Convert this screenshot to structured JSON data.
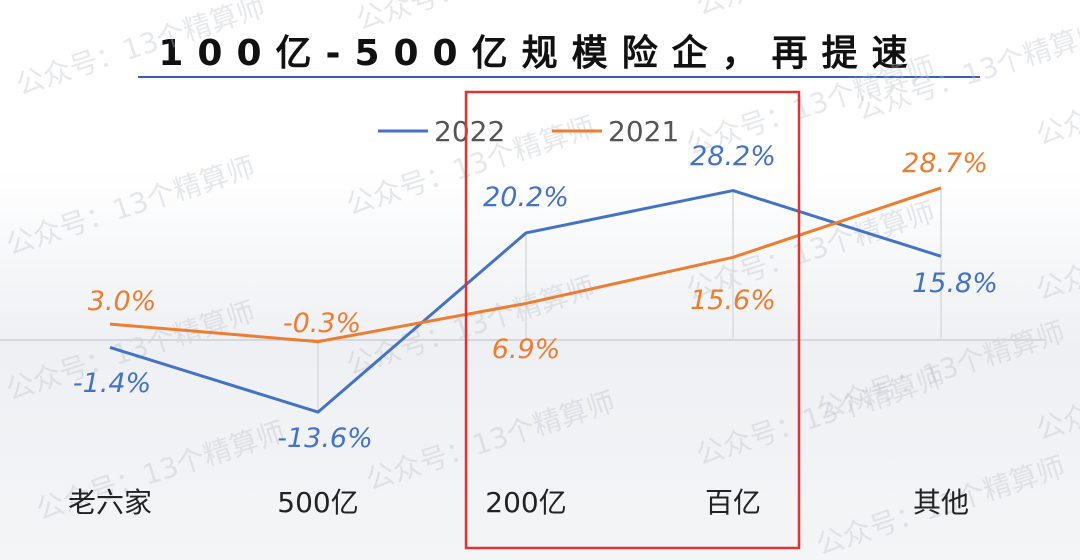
{
  "title": "100亿-500亿规模险企，再提速",
  "chart_data": {
    "type": "line",
    "categories": [
      "老六家",
      "500亿",
      "200亿",
      "百亿",
      "其他"
    ],
    "series": [
      {
        "name": "2022",
        "color": "#4472c4",
        "values": [
          -1.4,
          -13.6,
          20.2,
          28.2,
          15.8
        ],
        "labels": [
          "-1.4%",
          "-13.6%",
          "20.2%",
          "28.2%",
          "15.8%"
        ]
      },
      {
        "name": "2021",
        "color": "#ed7d31",
        "values": [
          3.0,
          -0.3,
          6.9,
          15.6,
          28.7
        ],
        "labels": [
          "3.0%",
          "-0.3%",
          "6.9%",
          "15.6%",
          "28.7%"
        ]
      }
    ],
    "ylim": [
      -20,
      35
    ],
    "grid": false,
    "legend": "top-center",
    "highlight": {
      "category": "200亿-百亿",
      "color": "#e23333"
    }
  },
  "watermark": "公众号：13个精算师"
}
